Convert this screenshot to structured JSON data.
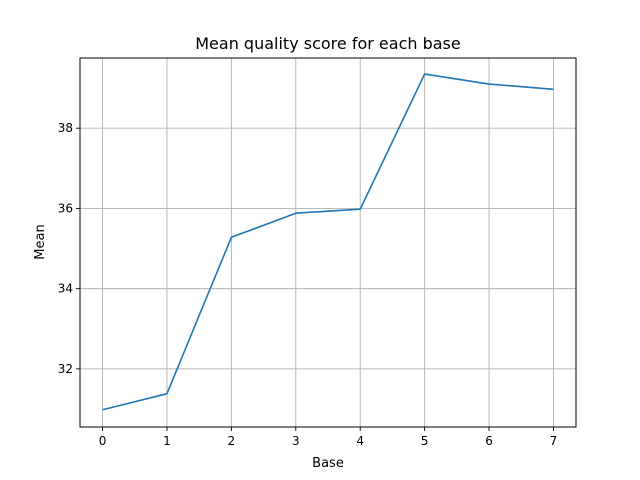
{
  "chart_data": {
    "type": "line",
    "title": "Mean quality score for each base",
    "xlabel": "Base",
    "ylabel": "Mean",
    "x": [
      0,
      1,
      2,
      3,
      4,
      5,
      6,
      7
    ],
    "series": [
      {
        "values": [
          30.98,
          31.38,
          35.28,
          35.88,
          35.98,
          39.35,
          39.1,
          38.97
        ],
        "color": "#1f77b4"
      }
    ],
    "xlim": [
      -0.35,
      7.35
    ],
    "ylim": [
      30.55,
      39.75
    ],
    "xticks": [
      0,
      1,
      2,
      3,
      4,
      5,
      6,
      7
    ],
    "yticks": [
      32,
      34,
      36,
      38
    ],
    "grid": true,
    "legend": false
  }
}
